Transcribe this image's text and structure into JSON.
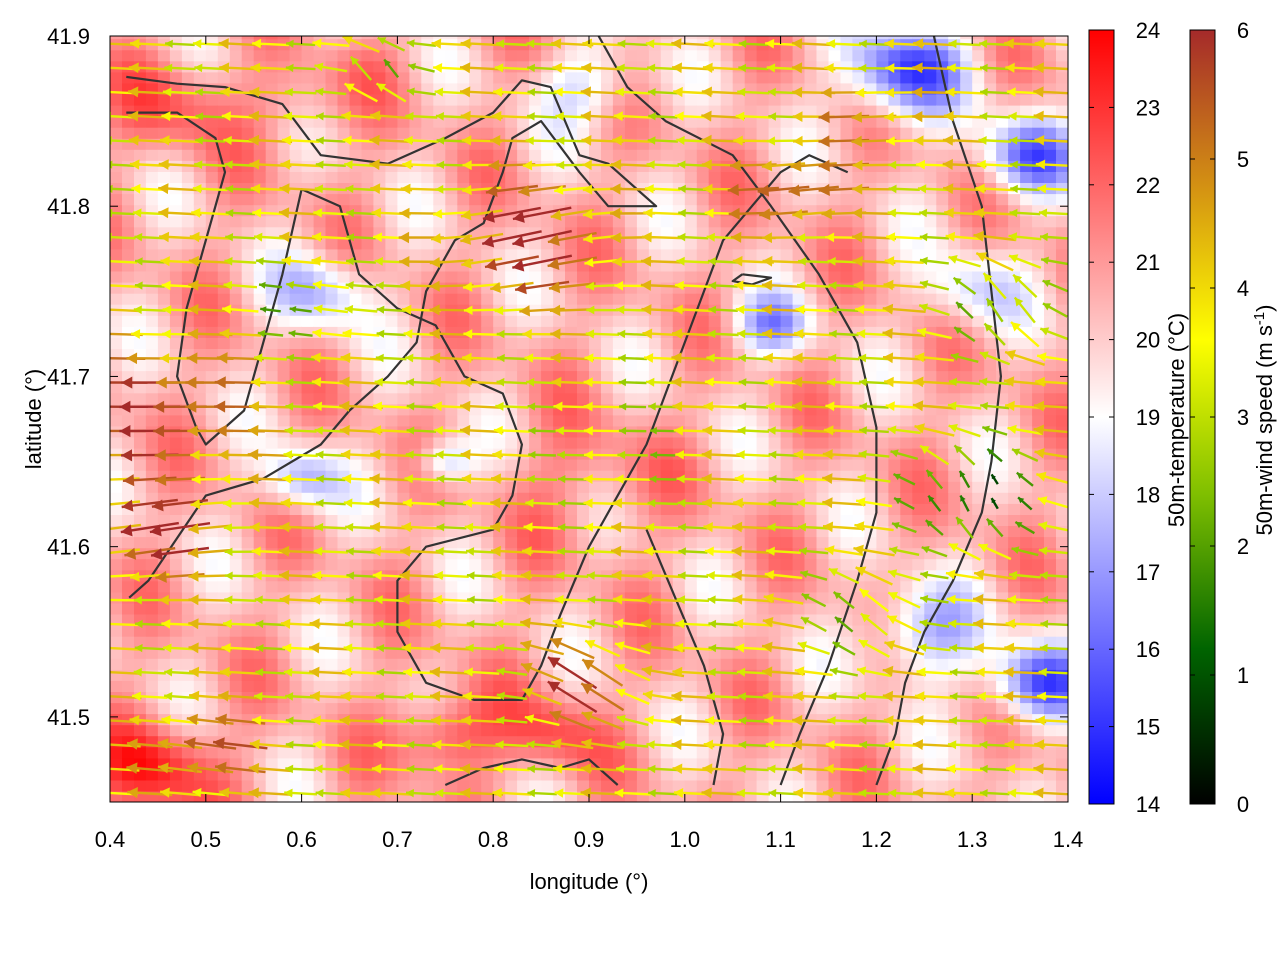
{
  "chart_data": {
    "type": "heatmap",
    "x_label": "longitude (°)",
    "y_label": "latitude (°)",
    "xlim": [
      0.4,
      1.4
    ],
    "ylim": [
      41.45,
      41.9
    ],
    "x_ticks": [
      "0.4",
      "0.5",
      "0.6",
      "0.7",
      "0.8",
      "0.9",
      "1.0",
      "1.1",
      "1.2",
      "1.3",
      "1.4"
    ],
    "y_ticks": [
      "41.5",
      "41.6",
      "41.7",
      "41.8",
      "41.9"
    ],
    "temperature_colorbar": {
      "label": "50m-temperature (°C)",
      "range": [
        14,
        24
      ],
      "ticks": [
        "14",
        "15",
        "16",
        "17",
        "18",
        "19",
        "20",
        "21",
        "22",
        "23",
        "24"
      ],
      "colors": [
        "#0000ff",
        "#ffffff",
        "#ff0000"
      ]
    },
    "wind_colorbar": {
      "label_main": "50m-wind speed (m s",
      "label_sup": "-1",
      "label_end": ")",
      "range": [
        0,
        6
      ],
      "ticks": [
        "0",
        "1",
        "2",
        "3",
        "4",
        "5",
        "6"
      ],
      "colors": [
        "#000000",
        "#006400",
        "#7fbf00",
        "#ffff00",
        "#d39013",
        "#a52a2a"
      ]
    },
    "temperature_field": {
      "background_c": 20.5,
      "cells": [
        {
          "lon": 0.45,
          "lat": 41.47,
          "temp": 23.3,
          "spread": 0.06
        },
        {
          "lon": 0.75,
          "lat": 41.49,
          "temp": 23.0,
          "spread": 0.05
        },
        {
          "lon": 0.86,
          "lat": 41.49,
          "temp": 22.5,
          "spread": 0.05
        },
        {
          "lon": 0.47,
          "lat": 41.86,
          "temp": 22.2,
          "spread": 0.06
        },
        {
          "lon": 0.6,
          "lat": 41.86,
          "temp": 21.5,
          "spread": 0.05
        },
        {
          "lon": 0.9,
          "lat": 41.64,
          "temp": 21.5,
          "spread": 0.08
        },
        {
          "lon": 0.66,
          "lat": 41.88,
          "temp": 21.0,
          "spread": 0.04
        },
        {
          "lon": 0.62,
          "lat": 41.75,
          "temp": 17.8,
          "spread": 0.05
        },
        {
          "lon": 0.6,
          "lat": 41.64,
          "temp": 17.5,
          "spread": 0.04
        },
        {
          "lon": 0.75,
          "lat": 41.65,
          "temp": 17.6,
          "spread": 0.03
        },
        {
          "lon": 1.23,
          "lat": 41.88,
          "temp": 15.5,
          "spread": 0.06
        },
        {
          "lon": 1.36,
          "lat": 41.83,
          "temp": 16.3,
          "spread": 0.05
        },
        {
          "lon": 1.37,
          "lat": 41.52,
          "temp": 15.8,
          "spread": 0.05
        },
        {
          "lon": 1.25,
          "lat": 41.55,
          "temp": 17.5,
          "spread": 0.06
        },
        {
          "lon": 1.09,
          "lat": 41.73,
          "temp": 17.3,
          "spread": 0.04
        },
        {
          "lon": 1.3,
          "lat": 41.75,
          "temp": 18.3,
          "spread": 0.05
        },
        {
          "lon": 0.9,
          "lat": 41.87,
          "temp": 18.3,
          "spread": 0.05
        }
      ]
    },
    "wind_field": {
      "x_spacing_deg": 0.0315,
      "y_spacing_deg": 0.0142,
      "regions": [
        {
          "lon": 0.46,
          "lat": 41.68,
          "speed": 6.2,
          "dir_deg": 182,
          "spread": 0.08
        },
        {
          "lon": 0.45,
          "lat": 41.61,
          "speed": 6.0,
          "dir_deg": 195,
          "spread": 0.06
        },
        {
          "lon": 0.5,
          "lat": 41.48,
          "speed": 5.8,
          "dir_deg": 170,
          "spread": 0.05
        },
        {
          "lon": 0.84,
          "lat": 41.78,
          "speed": 6.3,
          "dir_deg": 200,
          "spread": 0.07
        },
        {
          "lon": 1.12,
          "lat": 41.81,
          "speed": 6.0,
          "dir_deg": 190,
          "spread": 0.05
        },
        {
          "lon": 0.9,
          "lat": 41.52,
          "speed": 5.6,
          "dir_deg": 130,
          "spread": 0.05
        },
        {
          "lon": 1.2,
          "lat": 41.85,
          "speed": 5.0,
          "dir_deg": 185,
          "spread": 0.05
        },
        {
          "lon": 0.6,
          "lat": 41.74,
          "speed": 2.1,
          "dir_deg": 170,
          "spread": 0.05
        },
        {
          "lon": 0.93,
          "lat": 41.66,
          "speed": 2.8,
          "dir_deg": 180,
          "spread": 0.07
        },
        {
          "lon": 1.3,
          "lat": 41.63,
          "speed": 0.6,
          "dir_deg": 90,
          "spread": 0.06
        },
        {
          "lon": 1.33,
          "lat": 41.74,
          "speed": 2.2,
          "dir_deg": 100,
          "spread": 0.05
        },
        {
          "lon": 0.68,
          "lat": 41.88,
          "speed": 1.6,
          "dir_deg": 100,
          "spread": 0.03
        },
        {
          "lon": 1.18,
          "lat": 41.56,
          "speed": 2.6,
          "dir_deg": 120,
          "spread": 0.05
        }
      ]
    },
    "contours": [
      {
        "name": "contour-line",
        "points": [
          [
            0.417,
            41.876
          ],
          [
            0.47,
            41.872
          ],
          [
            0.52,
            41.87
          ],
          [
            0.58,
            41.86
          ],
          [
            0.62,
            41.83
          ],
          [
            0.69,
            41.825
          ],
          [
            0.75,
            41.84
          ],
          [
            0.8,
            41.855
          ],
          [
            0.83,
            41.874
          ],
          [
            0.86,
            41.87
          ],
          [
            0.89,
            41.83
          ],
          [
            0.92,
            41.825
          ],
          [
            0.97,
            41.8
          ],
          [
            0.92,
            41.8
          ],
          [
            0.89,
            41.82
          ],
          [
            0.85,
            41.85
          ],
          [
            0.82,
            41.84
          ],
          [
            0.81,
            41.82
          ],
          [
            0.79,
            41.79
          ],
          [
            0.76,
            41.78
          ],
          [
            0.73,
            41.75
          ],
          [
            0.72,
            41.72
          ],
          [
            0.69,
            41.7
          ],
          [
            0.65,
            41.68
          ],
          [
            0.62,
            41.66
          ],
          [
            0.56,
            41.64
          ],
          [
            0.5,
            41.63
          ],
          [
            0.44,
            41.58
          ],
          [
            0.42,
            41.57
          ]
        ]
      },
      {
        "name": "contour-line",
        "points": [
          [
            0.417,
            41.855
          ],
          [
            0.47,
            41.855
          ],
          [
            0.51,
            41.84
          ],
          [
            0.52,
            41.82
          ],
          [
            0.5,
            41.78
          ],
          [
            0.48,
            41.74
          ],
          [
            0.47,
            41.7
          ],
          [
            0.49,
            41.67
          ],
          [
            0.5,
            41.66
          ],
          [
            0.54,
            41.68
          ],
          [
            0.56,
            41.72
          ],
          [
            0.58,
            41.76
          ],
          [
            0.6,
            41.81
          ],
          [
            0.64,
            41.8
          ],
          [
            0.66,
            41.76
          ],
          [
            0.7,
            41.74
          ],
          [
            0.74,
            41.73
          ],
          [
            0.77,
            41.7
          ],
          [
            0.81,
            41.69
          ],
          [
            0.83,
            41.66
          ],
          [
            0.82,
            41.63
          ],
          [
            0.8,
            41.61
          ],
          [
            0.73,
            41.6
          ],
          [
            0.7,
            41.58
          ],
          [
            0.7,
            41.55
          ],
          [
            0.73,
            41.52
          ],
          [
            0.78,
            41.51
          ],
          [
            0.83,
            41.51
          ],
          [
            0.85,
            41.53
          ],
          [
            0.87,
            41.56
          ],
          [
            0.9,
            41.6
          ],
          [
            0.93,
            41.63
          ],
          [
            0.96,
            41.66
          ],
          [
            0.98,
            41.69
          ],
          [
            1.0,
            41.72
          ],
          [
            1.02,
            41.75
          ],
          [
            1.04,
            41.78
          ],
          [
            1.07,
            41.8
          ],
          [
            1.1,
            41.82
          ],
          [
            1.13,
            41.83
          ],
          [
            1.17,
            41.82
          ]
        ]
      },
      {
        "name": "contour-line",
        "points": [
          [
            0.96,
            41.61
          ],
          [
            0.99,
            41.57
          ],
          [
            1.02,
            41.53
          ],
          [
            1.04,
            41.49
          ],
          [
            1.03,
            41.46
          ]
        ]
      },
      {
        "name": "contour-line",
        "points": [
          [
            0.91,
            41.9
          ],
          [
            0.94,
            41.87
          ],
          [
            0.98,
            41.85
          ],
          [
            1.05,
            41.83
          ],
          [
            1.09,
            41.8
          ],
          [
            1.14,
            41.76
          ],
          [
            1.18,
            41.72
          ],
          [
            1.2,
            41.67
          ],
          [
            1.2,
            41.62
          ],
          [
            1.18,
            41.58
          ],
          [
            1.15,
            41.53
          ],
          [
            1.12,
            41.49
          ],
          [
            1.1,
            41.46
          ]
        ]
      },
      {
        "name": "contour-line",
        "points": [
          [
            1.26,
            41.9
          ],
          [
            1.28,
            41.85
          ],
          [
            1.31,
            41.8
          ],
          [
            1.32,
            41.75
          ],
          [
            1.33,
            41.7
          ],
          [
            1.32,
            41.65
          ],
          [
            1.31,
            41.62
          ],
          [
            1.28,
            41.58
          ],
          [
            1.25,
            41.55
          ],
          [
            1.23,
            41.52
          ],
          [
            1.22,
            41.49
          ],
          [
            1.2,
            41.46
          ]
        ]
      },
      {
        "name": "contour-line",
        "points": [
          [
            1.06,
            41.76
          ],
          [
            1.09,
            41.758
          ],
          [
            1.07,
            41.754
          ],
          [
            1.05,
            41.756
          ],
          [
            1.06,
            41.76
          ]
        ]
      },
      {
        "name": "contour-line",
        "points": [
          [
            0.75,
            41.46
          ],
          [
            0.79,
            41.47
          ],
          [
            0.83,
            41.475
          ],
          [
            0.87,
            41.47
          ],
          [
            0.9,
            41.475
          ],
          [
            0.93,
            41.46
          ]
        ]
      }
    ]
  }
}
